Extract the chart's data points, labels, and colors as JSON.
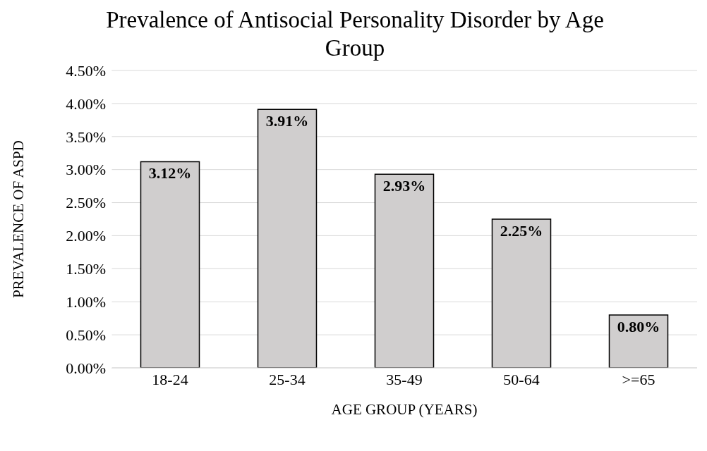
{
  "chart_data": {
    "type": "bar",
    "title": "Prevalence of Antisocial Personality Disorder by Age Group",
    "xlabel": "AGE GROUP (YEARS)",
    "ylabel": "PREVALENCE OF ASPD",
    "categories": [
      "18-24",
      "25-34",
      "35-49",
      "50-64",
      ">=65"
    ],
    "values": [
      3.12,
      3.91,
      2.93,
      2.25,
      0.8
    ],
    "value_labels": [
      "3.12%",
      "3.91%",
      "2.93%",
      "2.25%",
      "0.80%"
    ],
    "color": "#d0cece",
    "ylim": [
      0,
      4.5
    ],
    "yticks": [
      {
        "value": 0,
        "label": "0.00%"
      },
      {
        "value": 0.5,
        "label": "0.50%"
      },
      {
        "value": 1,
        "label": "1.00%"
      },
      {
        "value": 1.5,
        "label": "1.50%"
      },
      {
        "value": 2,
        "label": "2.00%"
      },
      {
        "value": 2.5,
        "label": "2.50%"
      },
      {
        "value": 3,
        "label": "3.00%"
      },
      {
        "value": 3.5,
        "label": "3.50%"
      },
      {
        "value": 4,
        "label": "4.00%"
      },
      {
        "value": 4.5,
        "label": "4.50%"
      }
    ],
    "grid": "y",
    "legend": false
  }
}
